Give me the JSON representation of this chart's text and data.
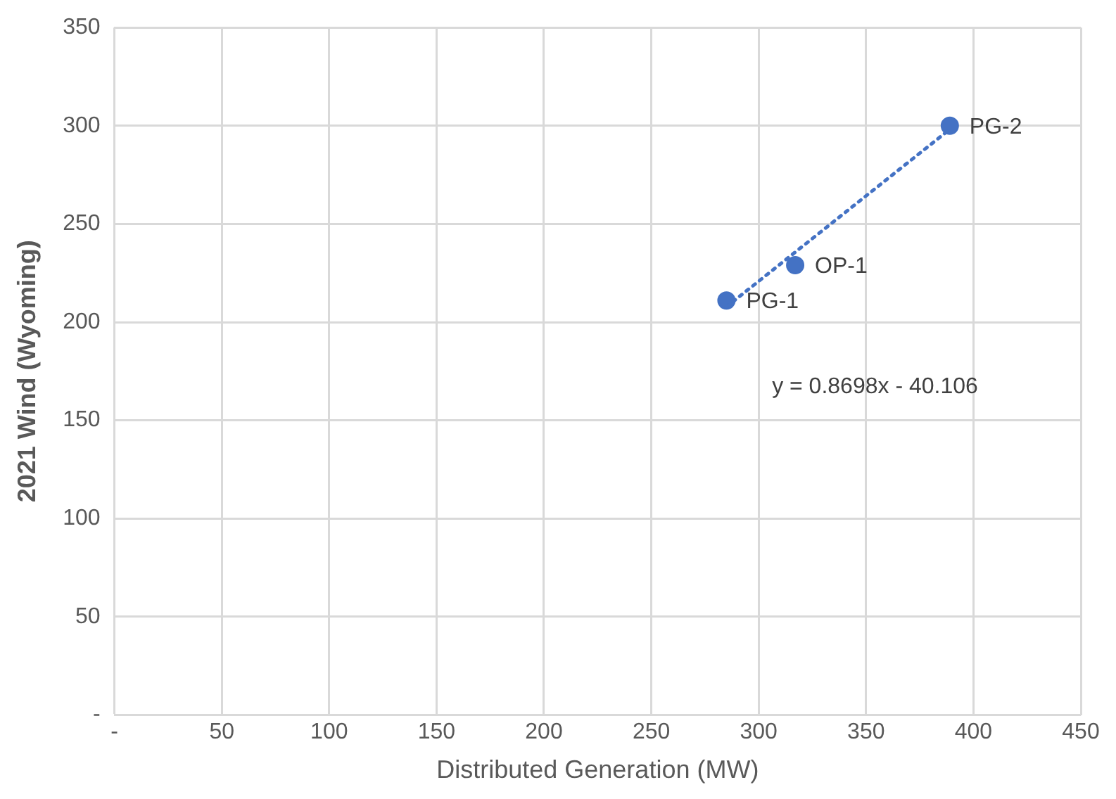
{
  "chart_data": {
    "type": "scatter",
    "xlabel": "Distributed Generation (MW)",
    "ylabel": "2021 Wind (Wyoming)",
    "series": [
      {
        "type": "scatter",
        "color": "#4472c4",
        "x": [
          285,
          317,
          389
        ],
        "values": [
          211,
          229,
          300
        ],
        "marker": "circle"
      },
      {
        "type": "line",
        "color": "#4472c4",
        "x": [
          285,
          389
        ],
        "values": [
          207.8,
          298.2
        ],
        "line_style": "dotted",
        "marker": "none"
      }
    ],
    "xlim": [
      0,
      450
    ],
    "xticks": [
      {
        "value": 0,
        "label": "-"
      },
      50,
      100,
      150,
      200,
      250,
      300,
      350,
      400,
      450
    ],
    "ylim": [
      0,
      350
    ],
    "yticks": [
      {
        "value": 0,
        "label": "-"
      },
      50,
      100,
      150,
      200,
      250,
      300,
      350
    ],
    "grid": true,
    "legend": false,
    "annotations": [
      {
        "text": "PG-1",
        "x": 285,
        "y": 211
      },
      {
        "text": "OP-1",
        "x": 317,
        "y": 229
      },
      {
        "text": "PG-2",
        "x": 389,
        "y": 300
      },
      "y = 0.8698x - 40.106"
    ]
  }
}
